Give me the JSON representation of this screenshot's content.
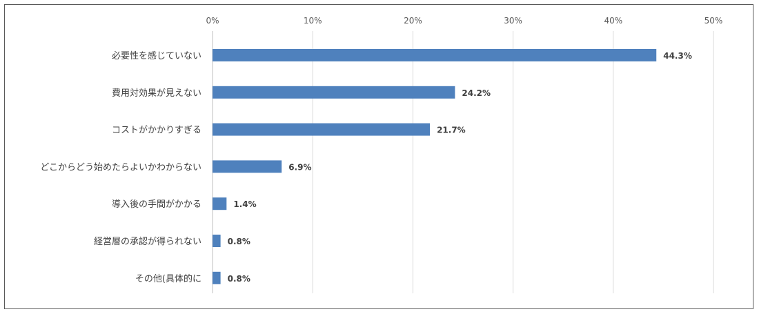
{
  "chart_data": {
    "type": "bar",
    "orientation": "horizontal",
    "categories": [
      "必要性を感じていない",
      "費用対効果が見えない",
      "コストがかかりすぎる",
      "どこからどう始めたらよいかわからない",
      "導入後の手間がかかる",
      "経営層の承認が得られない",
      "その他(具体的に"
    ],
    "values": [
      44.3,
      24.2,
      21.7,
      6.9,
      1.4,
      0.8,
      0.8
    ],
    "data_labels": [
      "44.3%",
      "24.2%",
      "21.7%",
      "6.9%",
      "1.4%",
      "0.8%",
      "0.8%"
    ],
    "x_ticks": [
      "0%",
      "10%",
      "20%",
      "30%",
      "40%",
      "50%"
    ],
    "xlim": [
      0,
      50
    ],
    "x_axis_position": "top",
    "grid": true,
    "legend": "none",
    "title": "",
    "xlabel": "",
    "ylabel": "",
    "bar_color": "#4F81BD",
    "grid_color": "#D9D9D9"
  }
}
